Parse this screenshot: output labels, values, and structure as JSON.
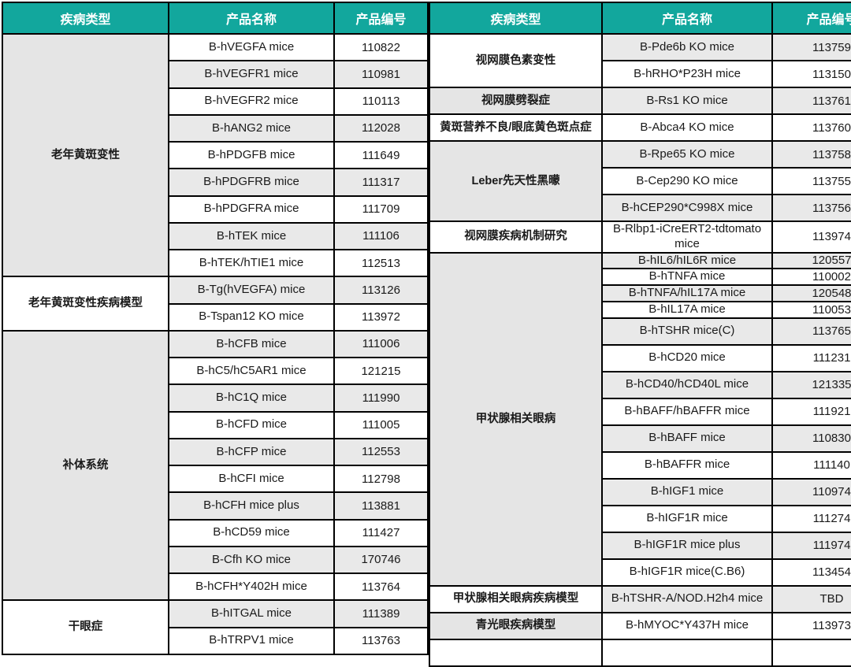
{
  "palette": {
    "header_bg": "#12A79D",
    "header_text": "#FFFFFF",
    "row_white": "#FFFFFF",
    "row_gray": "#E9E9E9",
    "disease_gray": "#E5E5E5",
    "border": "#000000"
  },
  "column_headers": {
    "disease_type": "疾病类型",
    "product_name": "产品名称",
    "product_code": "产品编号"
  },
  "left_table": {
    "first_row_shade": "white",
    "first_group_shade": "gray",
    "groups": [
      {
        "disease": "老年黄斑变性",
        "rows": [
          {
            "name": "B-hVEGFA mice",
            "code": "110822"
          },
          {
            "name": "B-hVEGFR1 mice",
            "code": "110981"
          },
          {
            "name": "B-hVEGFR2 mice",
            "code": "110113"
          },
          {
            "name": "B-hANG2 mice",
            "code": "112028"
          },
          {
            "name": "B-hPDGFB mice",
            "code": "111649"
          },
          {
            "name": "B-hPDGFRB mice",
            "code": "111317"
          },
          {
            "name": "B-hPDGFRA mice",
            "code": "111709"
          },
          {
            "name": "B-hTEK mice",
            "code": "111106"
          },
          {
            "name": "B-hTEK/hTIE1 mice",
            "code": "112513"
          }
        ]
      },
      {
        "disease": "老年黄斑变性疾病模型",
        "rows": [
          {
            "name": "B-Tg(hVEGFA) mice",
            "code": "113126"
          },
          {
            "name": "B-Tspan12 KO mice",
            "code": "113972"
          }
        ]
      },
      {
        "disease": "补体系统",
        "rows": [
          {
            "name": "B-hCFB mice",
            "code": "111006"
          },
          {
            "name": "B-hC5/hC5AR1 mice",
            "code": "121215"
          },
          {
            "name": "B-hC1Q mice",
            "code": "111990"
          },
          {
            "name": "B-hCFD mice",
            "code": "111005"
          },
          {
            "name": "B-hCFP mice",
            "code": "112553"
          },
          {
            "name": "B-hCFI mice",
            "code": "112798"
          },
          {
            "name": "B-hCFH mice plus",
            "code": "113881"
          },
          {
            "name": "B-hCD59 mice",
            "code": "111427"
          },
          {
            "name": "B-Cfh KO mice",
            "code": "170746"
          },
          {
            "name": "B-hCFH*Y402H mice",
            "code": "113764"
          }
        ]
      },
      {
        "disease": "干眼症",
        "rows": [
          {
            "name": "B-hITGAL mice",
            "code": "111389"
          },
          {
            "name": "B-hTRPV1 mice",
            "code": "113763"
          }
        ]
      }
    ]
  },
  "right_table": {
    "first_row_shade": "gray",
    "first_group_shade": "white",
    "groups": [
      {
        "disease": "视网膜色素变性",
        "rows": [
          {
            "name": "B-Pde6b KO mice",
            "code": "113759"
          },
          {
            "name": "B-hRHO*P23H mice",
            "code": "113150"
          }
        ]
      },
      {
        "disease": "视网膜劈裂症",
        "rows": [
          {
            "name": "B-Rs1 KO mice",
            "code": "113761"
          }
        ]
      },
      {
        "disease": "黄斑营养不良/眼底黄色斑点症",
        "rows": [
          {
            "name": "B-Abca4 KO mice",
            "code": "113760"
          }
        ]
      },
      {
        "disease": "Leber先天性黑曚",
        "rows": [
          {
            "name": "B-Rpe65 KO mice",
            "code": "113758"
          },
          {
            "name": "B-Cep290 KO mice",
            "code": "113755"
          },
          {
            "name": "B-hCEP290*C998X mice",
            "code": "113756"
          }
        ]
      },
      {
        "disease": "视网膜疾病机制研究",
        "rows": [
          {
            "name": "B-Rlbp1-iCreERT2-tdtomato mice",
            "code": "113974"
          }
        ]
      },
      {
        "disease": "甲状腺相关眼病",
        "rows": [
          {
            "name": "B-hIL6/hIL6R mice",
            "code": "120557",
            "narrow": true
          },
          {
            "name": "B-hTNFA mice",
            "code": "110002",
            "narrow": true
          },
          {
            "name": "B-hTNFA/hIL17A mice",
            "code": "120548",
            "narrow": true
          },
          {
            "name": "B-hIL17A mice",
            "code": "110053",
            "narrow": true
          },
          {
            "name": "B-hTSHR mice(C)",
            "code": "113765"
          },
          {
            "name": "B-hCD20 mice",
            "code": "111231"
          },
          {
            "name": "B-hCD40/hCD40L mice",
            "code": "121335"
          },
          {
            "name": "B-hBAFF/hBAFFR mice",
            "code": "111921"
          },
          {
            "name": "B-hBAFF mice",
            "code": "110830"
          },
          {
            "name": "B-hBAFFR mice",
            "code": "111140"
          },
          {
            "name": "B-hIGF1 mice",
            "code": "110974"
          },
          {
            "name": "B-hIGF1R mice",
            "code": "111274"
          },
          {
            "name": "B-hIGF1R mice plus",
            "code": "111974"
          },
          {
            "name": "B-hIGF1R mice(C.B6)",
            "code": "113454"
          }
        ]
      },
      {
        "disease": "甲状腺相关眼病疾病模型",
        "rows": [
          {
            "name": "B-hTSHR-A/NOD.H2h4 mice",
            "code": "TBD"
          }
        ]
      },
      {
        "disease": "青光眼疾病模型",
        "rows": [
          {
            "name": "B-hMYOC*Y437H mice",
            "code": "113973"
          }
        ]
      },
      {
        "disease": "",
        "rows": [
          {
            "name": "",
            "code": "",
            "shade": "white"
          }
        ]
      }
    ]
  }
}
